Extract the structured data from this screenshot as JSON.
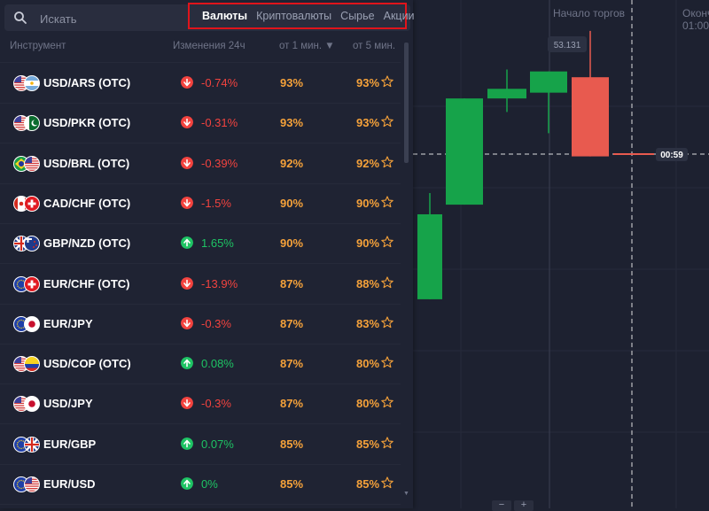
{
  "search": {
    "placeholder": "Искать"
  },
  "tabs": [
    {
      "label": "Валюты",
      "active": true
    },
    {
      "label": "Криптовалюты",
      "active": false
    },
    {
      "label": "Сырье",
      "active": false
    },
    {
      "label": "Акции",
      "active": false
    }
  ],
  "header": {
    "instrument": "Инструмент",
    "change": "Изменения 24ч",
    "from1": "от 1 мин. ▼",
    "from5": "от 5 мин."
  },
  "instruments": [
    {
      "name": "USD/ARS (OTC)",
      "flags": [
        "us",
        "ar"
      ],
      "direction": "down",
      "change": "-0.74%",
      "p1": "93%",
      "p5": "93%"
    },
    {
      "name": "USD/PKR (OTC)",
      "flags": [
        "us",
        "pk"
      ],
      "direction": "down",
      "change": "-0.31%",
      "p1": "93%",
      "p5": "93%"
    },
    {
      "name": "USD/BRL (OTC)",
      "flags": [
        "br",
        "us"
      ],
      "direction": "down",
      "change": "-0.39%",
      "p1": "92%",
      "p5": "92%"
    },
    {
      "name": "CAD/CHF (OTC)",
      "flags": [
        "ca",
        "ch"
      ],
      "direction": "down",
      "change": "-1.5%",
      "p1": "90%",
      "p5": "90%"
    },
    {
      "name": "GBP/NZD (OTC)",
      "flags": [
        "gb",
        "nz"
      ],
      "direction": "up",
      "change": "1.65%",
      "p1": "90%",
      "p5": "90%"
    },
    {
      "name": "EUR/CHF (OTC)",
      "flags": [
        "eu",
        "ch"
      ],
      "direction": "down",
      "change": "-13.9%",
      "p1": "87%",
      "p5": "88%"
    },
    {
      "name": "EUR/JPY",
      "flags": [
        "eu",
        "jp"
      ],
      "direction": "down",
      "change": "-0.3%",
      "p1": "87%",
      "p5": "83%"
    },
    {
      "name": "USD/COP (OTC)",
      "flags": [
        "us",
        "co"
      ],
      "direction": "up",
      "change": "0.08%",
      "p1": "87%",
      "p5": "80%"
    },
    {
      "name": "USD/JPY",
      "flags": [
        "us",
        "jp"
      ],
      "direction": "down",
      "change": "-0.3%",
      "p1": "87%",
      "p5": "80%"
    },
    {
      "name": "EUR/GBP",
      "flags": [
        "eu",
        "gb"
      ],
      "direction": "up",
      "change": "0.07%",
      "p1": "85%",
      "p5": "85%"
    },
    {
      "name": "EUR/USD",
      "flags": [
        "eu",
        "us"
      ],
      "direction": "up",
      "change": "0%",
      "p1": "85%",
      "p5": "85%"
    }
  ],
  "chart": {
    "trading_start_label": "Начало торгов",
    "close_label_partial": "Оконч",
    "close_time_partial": "01:00",
    "price_label": "53.131",
    "timer_label": "00:59",
    "candles": [
      {
        "type": "bull",
        "open": 44.5,
        "close": 48.9,
        "high": 50.0,
        "low": 44.5
      },
      {
        "type": "bull",
        "open": 49.4,
        "close": 54.9,
        "high": 54.9,
        "low": 49.4
      },
      {
        "type": "bull",
        "open": 54.9,
        "close": 55.4,
        "high": 56.4,
        "low": 54.2
      },
      {
        "type": "bull",
        "open": 55.2,
        "close": 56.3,
        "high": 56.3,
        "low": 53.1
      },
      {
        "type": "bear",
        "open": 56.0,
        "close": 51.9,
        "high": 58.4,
        "low": 51.9
      }
    ],
    "current_price": 51.4
  },
  "colors": {
    "bull": "#16a34a",
    "bear": "#e85a4f",
    "accent_red": "#e0141b",
    "payout": "#f6a23a"
  },
  "controls": {
    "minus": "−",
    "plus": "+"
  }
}
